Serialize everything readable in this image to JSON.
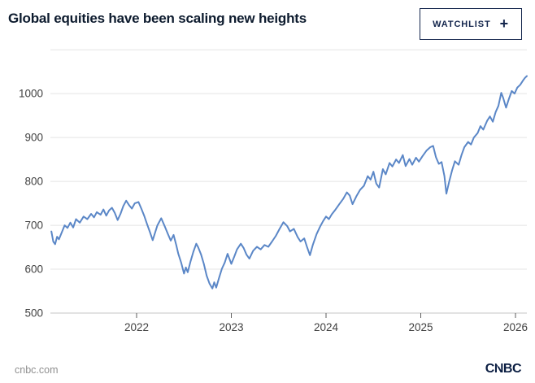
{
  "header": {
    "title": "Global equities have been scaling new heights",
    "watchlist_button": {
      "label": "WATCHLIST",
      "plus_icon": "+"
    }
  },
  "footer": {
    "source": "cnbc.com",
    "logo": "CNBC"
  },
  "colors": {
    "brand_navy": "#14264d",
    "logo_navy": "#0b1e42",
    "title_color": "#0d1b2e",
    "line_blue": "#5b87c7",
    "gridline": "#e4e4e4",
    "axis_line": "#c6c6c6",
    "tick_label": "#414141",
    "footer_gray": "#8f8f8f"
  },
  "chart_data": {
    "type": "line",
    "title": "Global equities have been scaling new heights",
    "xlabel": "",
    "ylabel": "",
    "legend": "none",
    "grid": "horizontal",
    "line_color": "#5b87c7",
    "xlim": [
      2021.09,
      2026.12
    ],
    "ylim": [
      500,
      1104
    ],
    "xticks": [
      2022,
      2023,
      2024,
      2025,
      2026
    ],
    "yticks": [
      500,
      600,
      700,
      800,
      900,
      1000
    ],
    "gridlines": [
      500,
      600,
      700,
      800,
      900,
      1000,
      1100
    ],
    "series": [
      {
        "x": [
          2021.1,
          2021.12,
          2021.14,
          2021.16,
          2021.18,
          2021.21,
          2021.24,
          2021.27,
          2021.3,
          2021.33,
          2021.36,
          2021.4,
          2021.44,
          2021.48,
          2021.52,
          2021.55,
          2021.58,
          2021.62,
          2021.65,
          2021.68,
          2021.71,
          2021.74,
          2021.77,
          2021.8,
          2021.83,
          2021.86,
          2021.89,
          2021.92,
          2021.95,
          2021.98,
          2022.02,
          2022.05,
          2022.08,
          2022.11,
          2022.14,
          2022.17,
          2022.19,
          2022.22,
          2022.26,
          2022.3,
          2022.33,
          2022.36,
          2022.39,
          2022.42,
          2022.44,
          2022.47,
          2022.5,
          2022.52,
          2022.54,
          2022.57,
          2022.6,
          2022.63,
          2022.65,
          2022.68,
          2022.71,
          2022.74,
          2022.77,
          2022.8,
          2022.82,
          2022.84,
          2022.87,
          2022.9,
          2022.93,
          2022.96,
          2023.0,
          2023.03,
          2023.06,
          2023.1,
          2023.13,
          2023.16,
          2023.19,
          2023.23,
          2023.27,
          2023.31,
          2023.35,
          2023.39,
          2023.43,
          2023.47,
          2023.51,
          2023.55,
          2023.59,
          2023.62,
          2023.66,
          2023.7,
          2023.73,
          2023.77,
          2023.8,
          2023.83,
          2023.86,
          2023.9,
          2023.94,
          2023.97,
          2024.0,
          2024.03,
          2024.06,
          2024.1,
          2024.14,
          2024.18,
          2024.22,
          2024.25,
          2024.28,
          2024.32,
          2024.36,
          2024.4,
          2024.44,
          2024.47,
          2024.5,
          2024.53,
          2024.56,
          2024.6,
          2024.63,
          2024.67,
          2024.7,
          2024.74,
          2024.77,
          2024.81,
          2024.84,
          2024.88,
          2024.91,
          2024.95,
          2024.98,
          2025.02,
          2025.06,
          2025.1,
          2025.13,
          2025.16,
          2025.19,
          2025.22,
          2025.25,
          2025.27,
          2025.3,
          2025.33,
          2025.36,
          2025.4,
          2025.43,
          2025.46,
          2025.5,
          2025.53,
          2025.56,
          2025.6,
          2025.63,
          2025.66,
          2025.7,
          2025.73,
          2025.76,
          2025.79,
          2025.82,
          2025.85,
          2025.87,
          2025.9,
          2025.93,
          2025.96,
          2025.99,
          2026.02,
          2026.05,
          2026.08,
          2026.1,
          2026.12
        ],
        "y": [
          686,
          663,
          657,
          674,
          668,
          684,
          700,
          694,
          706,
          695,
          714,
          706,
          720,
          714,
          726,
          718,
          730,
          724,
          736,
          722,
          734,
          740,
          728,
          712,
          726,
          744,
          756,
          746,
          738,
          750,
          753,
          738,
          722,
          703,
          685,
          666,
          680,
          700,
          716,
          696,
          680,
          665,
          678,
          654,
          635,
          615,
          590,
          604,
          593,
          618,
          640,
          658,
          650,
          634,
          612,
          585,
          567,
          556,
          570,
          558,
          580,
          601,
          615,
          635,
          612,
          628,
          645,
          658,
          648,
          633,
          624,
          642,
          651,
          645,
          655,
          651,
          663,
          676,
          692,
          707,
          698,
          686,
          692,
          673,
          663,
          670,
          650,
          632,
          655,
          680,
          698,
          710,
          720,
          714,
          725,
          736,
          748,
          760,
          775,
          768,
          748,
          766,
          781,
          790,
          812,
          804,
          822,
          795,
          786,
          828,
          816,
          842,
          834,
          850,
          842,
          860,
          835,
          851,
          838,
          854,
          845,
          858,
          870,
          878,
          881,
          855,
          840,
          844,
          812,
          772,
          800,
          825,
          846,
          838,
          860,
          878,
          890,
          884,
          900,
          910,
          926,
          918,
          938,
          948,
          936,
          958,
          972,
          1002,
          990,
          968,
          988,
          1006,
          1000,
          1014,
          1020,
          1030,
          1036,
          1040
        ]
      }
    ]
  }
}
